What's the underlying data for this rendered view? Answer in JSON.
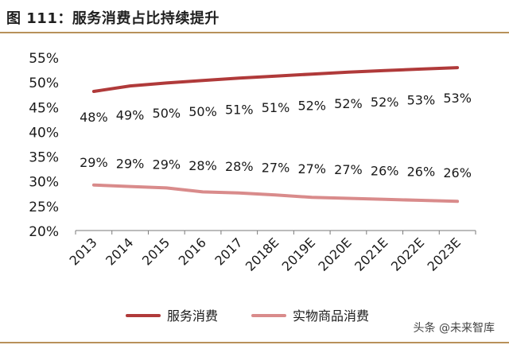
{
  "header": {
    "title": "图 111：服务消费占比持续提升"
  },
  "watermark": "头条 @未来智库",
  "chart_data": {
    "type": "line",
    "categories": [
      "2013",
      "2014",
      "2015",
      "2016",
      "2017",
      "2018E",
      "2019E",
      "2020E",
      "2021E",
      "2022E",
      "2023E"
    ],
    "y_ticks": [
      "20%",
      "25%",
      "30%",
      "35%",
      "40%",
      "45%",
      "50%",
      "55%"
    ],
    "ylim": [
      20,
      55
    ],
    "grid": false,
    "legend_position": "bottom",
    "series": [
      {
        "name": "服务消费",
        "color": "#b03a3a",
        "values": [
          48.1,
          49.2,
          49.8,
          50.3,
          50.8,
          51.2,
          51.6,
          52.0,
          52.3,
          52.6,
          52.9
        ],
        "labels": [
          "48%",
          "49%",
          "50%",
          "50%",
          "51%",
          "51%",
          "52%",
          "52%",
          "52%",
          "53%",
          "53%"
        ]
      },
      {
        "name": "实物商品消费",
        "color": "#d98b8b",
        "values": [
          29.2,
          28.9,
          28.6,
          27.8,
          27.6,
          27.2,
          26.7,
          26.5,
          26.3,
          26.1,
          25.9
        ],
        "labels": [
          "29%",
          "29%",
          "29%",
          "28%",
          "28%",
          "27%",
          "27%",
          "27%",
          "26%",
          "26%",
          "26%"
        ]
      }
    ]
  }
}
